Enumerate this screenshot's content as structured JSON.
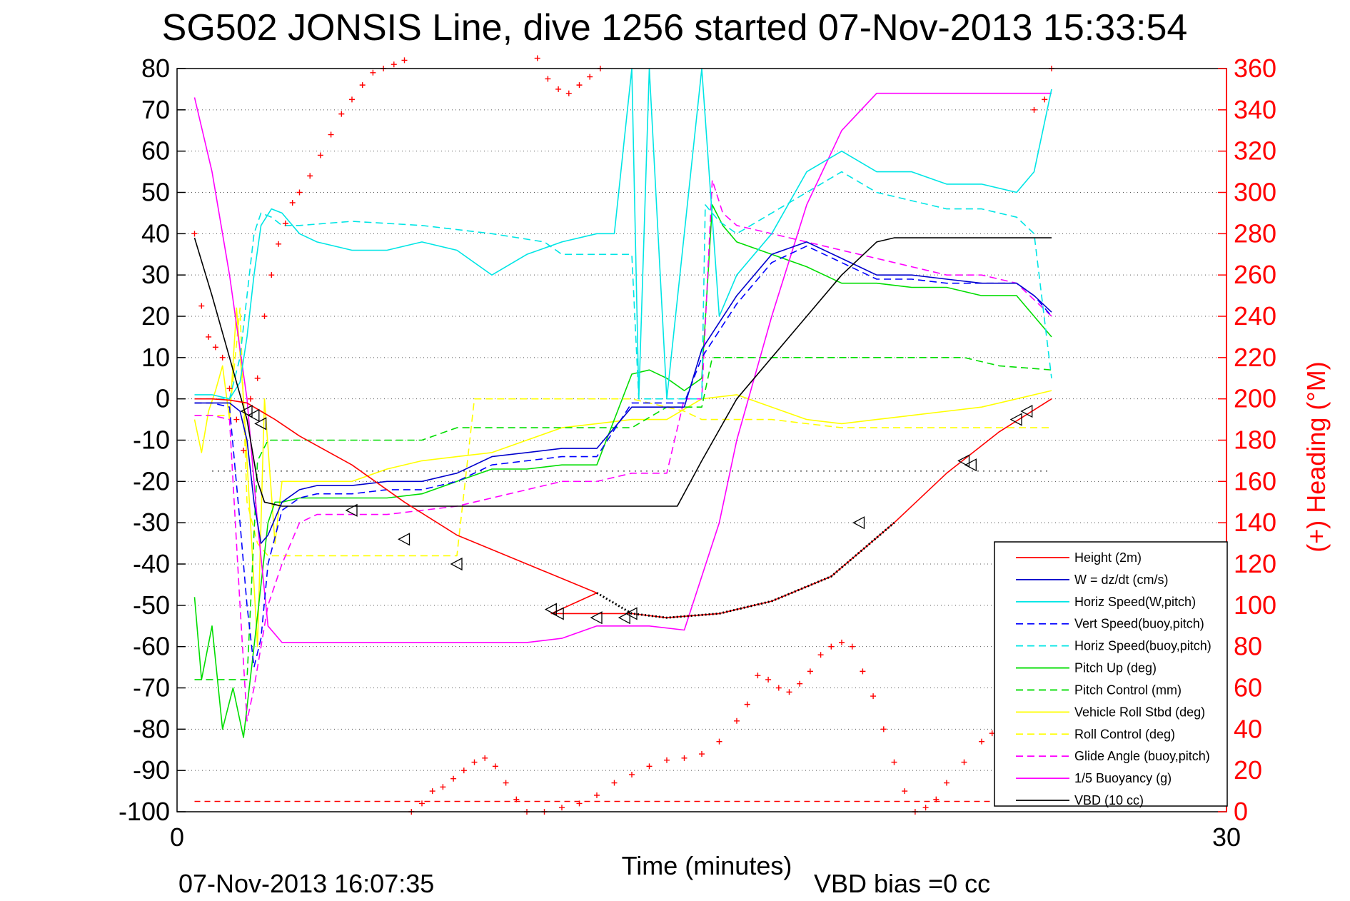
{
  "chart_data": {
    "type": "line",
    "title": "SG502 JONSIS Line, dive 1256 started 07-Nov-2013 15:33:54",
    "xlabel": "Time (minutes)",
    "ylabel": "",
    "y2label": "(+) Heading (°M)",
    "footer_left": "07-Nov-2013 16:07:35",
    "footer_right": "VBD bias =0 cc",
    "xlim": [
      0,
      30
    ],
    "xticks": [
      "0",
      "30"
    ],
    "ylim": [
      -100,
      80
    ],
    "yticks": [
      "80",
      "70",
      "60",
      "50",
      "40",
      "30",
      "20",
      "10",
      "0",
      "-10",
      "-20",
      "-30",
      "-40",
      "-50",
      "-60",
      "-70",
      "-80",
      "-90",
      "-100"
    ],
    "y2lim": [
      0,
      360
    ],
    "y2ticks": [
      "360",
      "340",
      "320",
      "300",
      "280",
      "260",
      "240",
      "220",
      "200",
      "180",
      "160",
      "140",
      "120",
      "100",
      "80",
      "60",
      "40",
      "20",
      "0"
    ],
    "grid": true,
    "legend_position": "bottom-right",
    "colors": {
      "height": "#ff0000",
      "w": "#0000cc",
      "horiz_w": "#00e5e5",
      "vert_buoy": "#0000ff",
      "horiz_buoy": "#00e5e5",
      "pitch": "#00dd00",
      "pitch_ctl": "#00dd00",
      "roll": "#ffff00",
      "roll_ctl": "#ffff00",
      "glide": "#ff00ff",
      "buoy": "#ff00ff",
      "vbd": "#000000",
      "heading": "#ff0000"
    },
    "series": [
      {
        "key": "height",
        "name": "Height (2m)",
        "dash": "",
        "x": [
          0.5,
          1.0,
          1.5,
          2.0,
          2.4,
          2.8,
          3.5,
          5.0,
          6.5,
          8.0,
          10.0,
          12.0,
          10.7,
          13.0,
          14.0,
          15.5,
          17.0,
          18.7,
          20.5,
          22.0,
          23.5,
          25.0
        ],
        "y": [
          0,
          0,
          -0.3,
          -1,
          -3,
          -5,
          -9,
          -16,
          -25,
          -33,
          -40,
          -47,
          -52,
          -52,
          -53,
          -52,
          -49,
          -43,
          -30,
          -18,
          -8,
          0
        ]
      },
      {
        "key": "w",
        "name": "W = dz/dt (cm/s)",
        "dash": "",
        "x": [
          0.5,
          1.0,
          1.5,
          1.8,
          2.0,
          2.2,
          2.4,
          2.6,
          3.0,
          3.5,
          4.0,
          5.0,
          6.0,
          7.0,
          8.0,
          9.0,
          10.0,
          11.0,
          12.0,
          13.0,
          14.0,
          14.5,
          15.0,
          16.0,
          17.0,
          18.0,
          19.0,
          20.0,
          21.0,
          22.0,
          23.0,
          24.0,
          24.5,
          25.0
        ],
        "y": [
          -1,
          -1,
          -1,
          -3,
          -10,
          -25,
          -35,
          -33,
          -25,
          -22,
          -21,
          -21,
          -20,
          -20,
          -18,
          -14,
          -13,
          -12,
          -12,
          -2,
          -2,
          -2,
          12,
          25,
          35,
          38,
          34,
          30,
          30,
          29,
          28,
          28,
          25,
          21
        ]
      },
      {
        "key": "horiz_w",
        "name": "Horiz Speed(W,pitch)",
        "dash": "",
        "x": [
          0.5,
          1.0,
          1.5,
          1.8,
          2.0,
          2.2,
          2.4,
          2.7,
          3.0,
          3.5,
          4.0,
          5.0,
          6.0,
          7.0,
          8.0,
          9.0,
          10.0,
          11.0,
          12.0,
          12.5,
          13.0,
          13.2,
          13.5,
          14.0,
          15.0,
          15.5,
          16.0,
          17.0,
          18.0,
          19.0,
          20.0,
          21.0,
          22.0,
          23.0,
          24.0,
          24.5,
          25.0
        ],
        "y": [
          1,
          1,
          0,
          4,
          15,
          30,
          42,
          46,
          45,
          40,
          38,
          36,
          36,
          38,
          36,
          30,
          35,
          38,
          40,
          40,
          80,
          0,
          80,
          0,
          80,
          20,
          30,
          40,
          55,
          60,
          55,
          55,
          52,
          52,
          50,
          55,
          75
        ]
      },
      {
        "key": "vert_buoy",
        "name": "Vert Speed(buoy,pitch)",
        "dash": "10,6",
        "x": [
          0.5,
          1.0,
          1.5,
          1.8,
          2.0,
          2.2,
          2.4,
          2.6,
          3.0,
          3.5,
          4.0,
          5.0,
          6.0,
          7.0,
          8.0,
          9.0,
          10.0,
          11.0,
          12.0,
          13.0,
          14.0,
          14.5,
          15.0,
          16.0,
          17.0,
          18.0,
          19.0,
          20.0,
          21.0,
          22.0,
          23.0,
          24.0,
          24.5,
          25.0
        ],
        "y": [
          -1,
          -1,
          -2,
          -30,
          -50,
          -65,
          -58,
          -40,
          -27,
          -24,
          -23,
          -23,
          -22,
          -22,
          -20,
          -16,
          -15,
          -14,
          -14,
          -1,
          -1,
          -1,
          10,
          23,
          33,
          37,
          33,
          29,
          29,
          28,
          28,
          28,
          25,
          20
        ]
      },
      {
        "key": "horiz_buoy",
        "name": "Horiz Speed(buoy,pitch)",
        "dash": "10,6",
        "x": [
          0.5,
          1.0,
          1.5,
          1.8,
          2.0,
          2.2,
          2.4,
          2.7,
          3.0,
          3.5,
          5.0,
          7.0,
          9.0,
          10.5,
          11.0,
          12.0,
          13.0,
          13.2,
          14.0,
          14.5,
          15.0,
          15.1,
          15.5,
          16.0,
          17.0,
          18.0,
          19.0,
          20.0,
          21.0,
          22.0,
          23.0,
          24.0,
          24.5,
          25.0
        ],
        "y": [
          0,
          0,
          0,
          10,
          25,
          40,
          45,
          44,
          42,
          42,
          43,
          42,
          40,
          38,
          35,
          35,
          35,
          0,
          0,
          0,
          0,
          47,
          43,
          40,
          45,
          50,
          55,
          50,
          48,
          46,
          46,
          44,
          40,
          5
        ]
      },
      {
        "key": "pitch",
        "name": "Pitch Up (deg)",
        "dash": "",
        "x": [
          0.5,
          0.7,
          1.0,
          1.3,
          1.6,
          1.9,
          2.2,
          2.4,
          2.6,
          2.8,
          3.0,
          3.5,
          4.0,
          5.0,
          6.0,
          7.0,
          8.0,
          9.0,
          10.0,
          11.0,
          12.0,
          13.0,
          13.5,
          14.0,
          14.5,
          15.0,
          15.3,
          15.6,
          16.0,
          17.0,
          18.0,
          19.0,
          20.0,
          21.0,
          22.0,
          23.0,
          24.0,
          25.0
        ],
        "y": [
          -48,
          -68,
          -55,
          -80,
          -70,
          -82,
          -60,
          -45,
          -30,
          -25,
          -25,
          -24,
          -24,
          -24,
          -24,
          -23,
          -20,
          -17,
          -17,
          -16,
          -16,
          6,
          7,
          5,
          2,
          5,
          47,
          42,
          38,
          35,
          32,
          28,
          28,
          27,
          27,
          25,
          25,
          15
        ]
      },
      {
        "key": "pitch_ctl",
        "name": "Pitch Control (mm)",
        "dash": "10,6",
        "x": [
          0.5,
          1.0,
          2.0,
          2.3,
          2.6,
          3.0,
          5.0,
          7.0,
          8.0,
          9.0,
          9.5,
          10.0,
          12.0,
          13.0,
          14.0,
          15.0,
          15.3,
          17.0,
          19.0,
          21.0,
          22.5,
          23.5,
          25.0
        ],
        "y": [
          -68,
          -68,
          -68,
          -15,
          -10,
          -10,
          -10,
          -10,
          -7,
          -7,
          -7,
          -7,
          -7,
          -7,
          -2,
          -2,
          10,
          10,
          10,
          10,
          10,
          8,
          7
        ]
      },
      {
        "key": "roll",
        "name": "Vehicle Roll Stbd (deg)",
        "dash": "",
        "x": [
          0.5,
          0.7,
          0.9,
          1.1,
          1.3,
          1.5,
          1.7,
          1.9,
          2.1,
          2.3,
          2.5,
          2.8,
          3.0,
          5.0,
          6.0,
          7.0,
          8.0,
          9.0,
          10.0,
          11.0,
          12.0,
          13.0,
          14.0,
          15.0,
          16.0,
          17.0,
          18.0,
          19.0,
          20.0,
          21.0,
          22.0,
          23.0,
          24.0,
          25.0
        ],
        "y": [
          -5,
          -13,
          -3,
          2,
          8,
          -5,
          22,
          0,
          -30,
          -60,
          0,
          -35,
          -20,
          -20,
          -17,
          -15,
          -14,
          -13,
          -10,
          -7,
          -6,
          -5,
          -5,
          0,
          1,
          -2,
          -5,
          -6,
          -5,
          -4,
          -3,
          -2,
          0,
          2
        ]
      },
      {
        "key": "roll_ctl",
        "name": "Roll Control (deg)",
        "dash": "10,6",
        "x": [
          0.5,
          1.0,
          1.5,
          1.8,
          2.0,
          2.3,
          2.6,
          3.0,
          5.0,
          7.0,
          8.0,
          8.5,
          10.0,
          11.0,
          12.0,
          13.0,
          14.5,
          15.0,
          17.0,
          19.0,
          20.0,
          21.0,
          22.0,
          22.5,
          23.0,
          23.5,
          24.0,
          25.0
        ],
        "y": [
          -4,
          -4,
          -4,
          22,
          -25,
          -35,
          -38,
          -38,
          -38,
          -38,
          -38,
          0,
          0,
          0,
          0,
          0,
          -3,
          -5,
          -5,
          -7,
          -7,
          -7,
          -7,
          -7,
          -7,
          -7,
          -7,
          -7
        ]
      },
      {
        "key": "glide",
        "name": "Glide Angle (buoy,pitch)",
        "dash": "10,6",
        "x": [
          0.5,
          1.0,
          1.5,
          1.8,
          2.0,
          2.2,
          2.4,
          2.6,
          3.0,
          3.5,
          4.0,
          5.0,
          6.0,
          7.0,
          8.0,
          9.0,
          10.0,
          11.0,
          12.0,
          13.0,
          14.0,
          14.5,
          15.0,
          15.3,
          15.6,
          16.0,
          17.0,
          18.0,
          19.0,
          20.0,
          21.0,
          22.0,
          23.0,
          24.0,
          25.0
        ],
        "y": [
          -4,
          -4,
          -5,
          -50,
          -78,
          -70,
          -60,
          -50,
          -40,
          -30,
          -28,
          -28,
          -28,
          -27,
          -26,
          -24,
          -22,
          -20,
          -20,
          -18,
          -18,
          0,
          0,
          53,
          45,
          42,
          40,
          38,
          36,
          34,
          32,
          30,
          30,
          28,
          20
        ]
      },
      {
        "key": "buoy",
        "name": "1/5 Buoyancy (g)",
        "dash": "",
        "x": [
          0.5,
          1.0,
          1.5,
          2.0,
          2.3,
          2.6,
          3.0,
          5.0,
          8.0,
          10.0,
          11.0,
          12.0,
          13.5,
          14.5,
          15.5,
          16.0,
          17.0,
          18.0,
          19.0,
          20.0,
          21.0,
          22.0,
          23.0,
          24.0,
          25.0
        ],
        "y": [
          73,
          55,
          30,
          0,
          -30,
          -55,
          -59,
          -59,
          -59,
          -59,
          -58,
          -55,
          -55,
          -56,
          -30,
          -10,
          20,
          47,
          65,
          74,
          74,
          74,
          74,
          74,
          74
        ]
      },
      {
        "key": "vbd",
        "name": "VBD (10 cc)",
        "dash": "",
        "x": [
          0.5,
          1.0,
          1.5,
          2.0,
          2.3,
          2.5,
          3.0,
          5.0,
          8.0,
          10.0,
          12.0,
          13.0,
          14.3,
          15.0,
          16.0,
          17.0,
          18.0,
          19.0,
          20.0,
          20.5,
          21.0,
          22.0,
          23.0,
          24.0,
          25.0
        ],
        "y": [
          39,
          25,
          10,
          -5,
          -20,
          -25,
          -26,
          -26,
          -26,
          -26,
          -26,
          -26,
          -26,
          -15,
          0,
          10,
          20,
          30,
          38,
          39,
          39,
          39,
          39,
          39,
          39
        ]
      }
    ],
    "heading": {
      "name": "(+) Heading (°M)",
      "x": [
        0.5,
        0.7,
        0.9,
        1.1,
        1.3,
        1.5,
        1.7,
        1.9,
        2.1,
        2.3,
        2.5,
        2.7,
        2.9,
        3.1,
        3.3,
        3.5,
        3.8,
        4.1,
        4.4,
        4.7,
        5.0,
        5.3,
        5.6,
        5.9,
        6.2,
        6.5,
        10.3,
        10.6,
        10.9,
        11.2,
        11.5,
        11.8,
        12.1,
        6.7,
        7.0,
        7.3,
        7.6,
        7.9,
        8.2,
        8.5,
        8.8,
        9.1,
        9.4,
        9.7,
        10.0,
        10.5,
        11.0,
        11.5,
        12.0,
        12.5,
        13.0,
        13.5,
        14.0,
        14.5,
        15.0,
        15.5,
        16.0,
        16.3,
        16.6,
        16.9,
        17.2,
        17.5,
        17.8,
        18.1,
        18.4,
        18.7,
        19.0,
        19.3,
        19.6,
        19.9,
        20.2,
        20.5,
        20.8,
        21.1,
        21.4,
        21.7,
        22.0,
        22.5,
        23.0,
        23.3,
        23.6,
        23.9,
        24.2,
        24.5,
        24.8,
        25.0
      ],
      "y": [
        280,
        245,
        230,
        225,
        220,
        205,
        190,
        175,
        200,
        210,
        240,
        260,
        275,
        285,
        295,
        300,
        308,
        318,
        328,
        338,
        345,
        352,
        358,
        360,
        362,
        364,
        365,
        355,
        350,
        348,
        352,
        356,
        360,
        0,
        4,
        10,
        12,
        16,
        20,
        24,
        26,
        22,
        14,
        6,
        0,
        0,
        2,
        4,
        8,
        14,
        18,
        22,
        25,
        26,
        28,
        34,
        44,
        52,
        66,
        64,
        60,
        58,
        62,
        68,
        76,
        80,
        82,
        80,
        68,
        56,
        40,
        24,
        10,
        0,
        2,
        6,
        14,
        24,
        34,
        38,
        32,
        28,
        34,
        340,
        345,
        360
      ],
      "pattern": "scatter-plus"
    },
    "height_markers": {
      "x": [
        2.0,
        2.2,
        2.4,
        5.0,
        6.5,
        8.0,
        10.7,
        10.9,
        12.0,
        12.8,
        13.0,
        19.5,
        22.5,
        22.7,
        24.0,
        24.3
      ],
      "y": [
        -3,
        -4,
        -6,
        -27,
        -34,
        -40,
        -51,
        -52,
        -53,
        -53,
        -52,
        -30,
        -15,
        -16,
        -5,
        -3
      ]
    },
    "reference_lines": [
      {
        "name": "",
        "y": -17.5,
        "x": [
          1,
          25
        ],
        "color": "#000000",
        "dash": "2,6"
      }
    ]
  }
}
